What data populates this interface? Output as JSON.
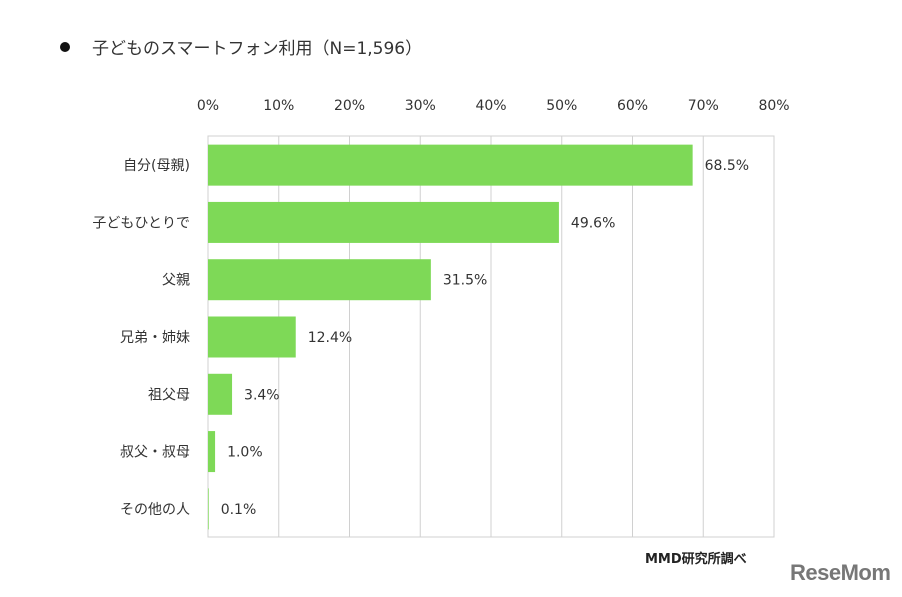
{
  "chart_data": {
    "type": "bar",
    "orientation": "horizontal",
    "title": "子どものスマートフォン利用（N=1,596）",
    "categories": [
      "自分(母親)",
      "子どもひとりで",
      "父親",
      "兄弟・姉妹",
      "祖父母",
      "叔父・叔母",
      "その他の人"
    ],
    "values": [
      68.5,
      49.6,
      31.5,
      12.4,
      3.4,
      1.0,
      0.1
    ],
    "data_labels": [
      "68.5%",
      "49.6%",
      "31.5%",
      "12.4%",
      "3.4%",
      "1.0%",
      "0.1%"
    ],
    "xlim": [
      0,
      80
    ],
    "x_ticks": [
      "0%",
      "10%",
      "20%",
      "30%",
      "40%",
      "50%",
      "60%",
      "70%",
      "80%"
    ],
    "x_axis_position": "top",
    "grid": true,
    "bar_color": "#7ed957",
    "grid_color": "#d0d0d0"
  },
  "source": "MMD研究所調べ",
  "logo": "ReseMom"
}
